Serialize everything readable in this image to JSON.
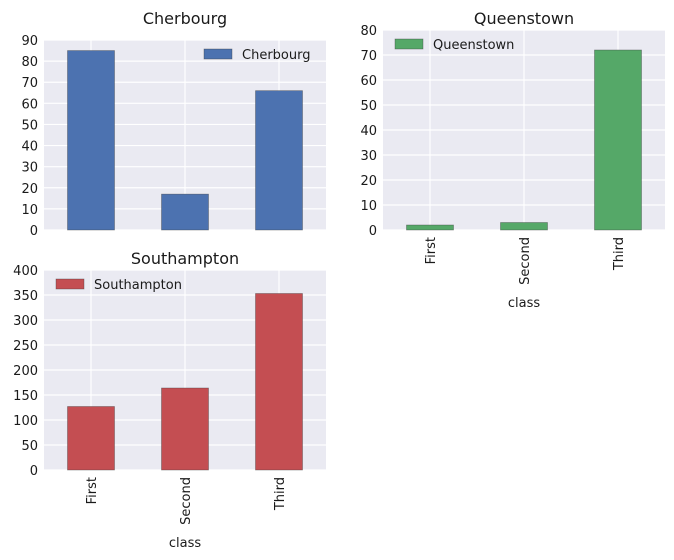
{
  "chart_data": [
    {
      "type": "bar",
      "title": "Cherbourg",
      "categories": [
        "First",
        "Second",
        "Third"
      ],
      "series": [
        {
          "name": "Cherbourg",
          "values": [
            85,
            17,
            66
          ]
        }
      ],
      "xlabel": "",
      "ylabel": "",
      "ylim": [
        0,
        90
      ],
      "yticks": [
        "0",
        "10",
        "20",
        "30",
        "40",
        "50",
        "60",
        "70",
        "80",
        "90"
      ],
      "show_xticklabels": false,
      "legend": "top-right",
      "grid": true,
      "color": "#4c72b0"
    },
    {
      "type": "bar",
      "title": "Queenstown",
      "categories": [
        "First",
        "Second",
        "Third"
      ],
      "series": [
        {
          "name": "Queenstown",
          "values": [
            2,
            3,
            72
          ]
        }
      ],
      "xlabel": "class",
      "ylabel": "",
      "ylim": [
        0,
        80
      ],
      "yticks": [
        "0",
        "10",
        "20",
        "30",
        "40",
        "50",
        "60",
        "70",
        "80"
      ],
      "show_xticklabels": true,
      "legend": "top-left",
      "grid": true,
      "color": "#55a868"
    },
    {
      "type": "bar",
      "title": "Southampton",
      "categories": [
        "First",
        "Second",
        "Third"
      ],
      "series": [
        {
          "name": "Southampton",
          "values": [
            127,
            164,
            353
          ]
        }
      ],
      "xlabel": "class",
      "ylabel": "",
      "ylim": [
        0,
        400
      ],
      "yticks": [
        "0",
        "50",
        "100",
        "150",
        "200",
        "250",
        "300",
        "350",
        "400"
      ],
      "show_xticklabels": true,
      "legend": "top-left",
      "grid": true,
      "color": "#c44e52"
    }
  ]
}
